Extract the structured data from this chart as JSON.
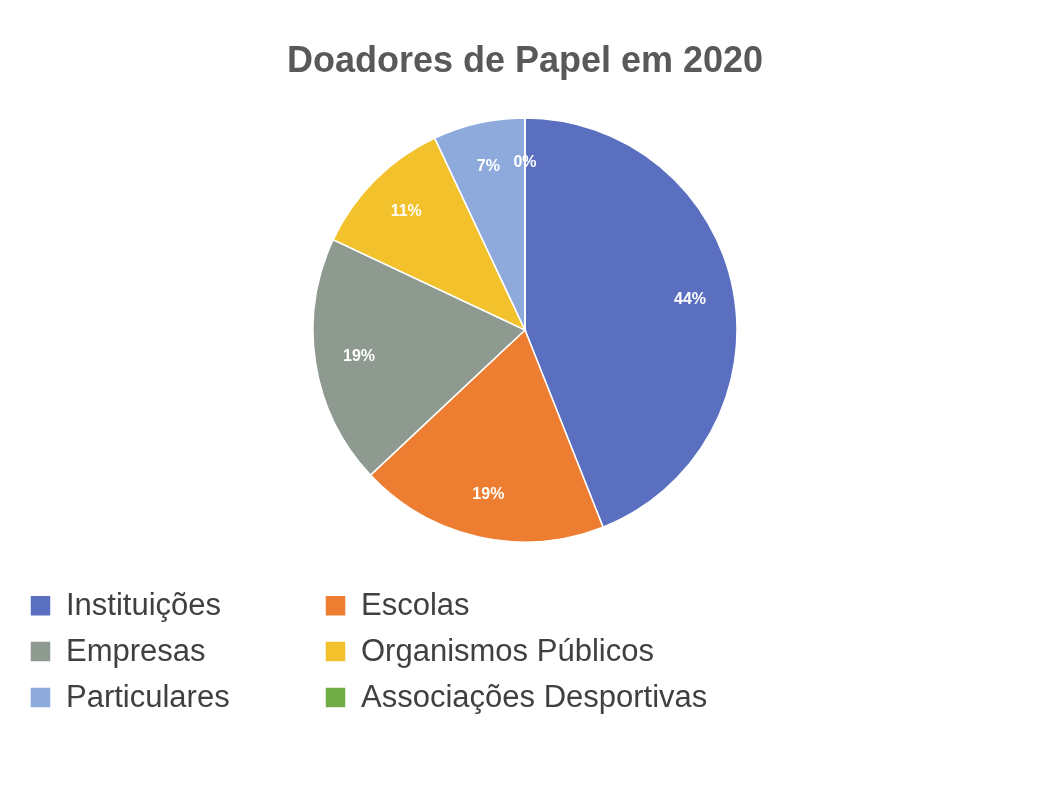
{
  "chart_data": {
    "type": "pie",
    "title": "Doadores de Papel em 2020",
    "categories": [
      "Instituições",
      "Escolas",
      "Empresas",
      "Organismos Públicos",
      "Particulares",
      "Associações Desportivas"
    ],
    "values": [
      44,
      19,
      19,
      11,
      7,
      0
    ],
    "colors": [
      "#5a6fc0",
      "#ed7d31",
      "#8e9a90",
      "#f3c12c",
      "#8eaadc",
      "#70ad47"
    ],
    "value_labels": [
      "44%",
      "19%",
      "19%",
      "11%",
      "7%",
      "0%"
    ],
    "legend": "bottom"
  }
}
